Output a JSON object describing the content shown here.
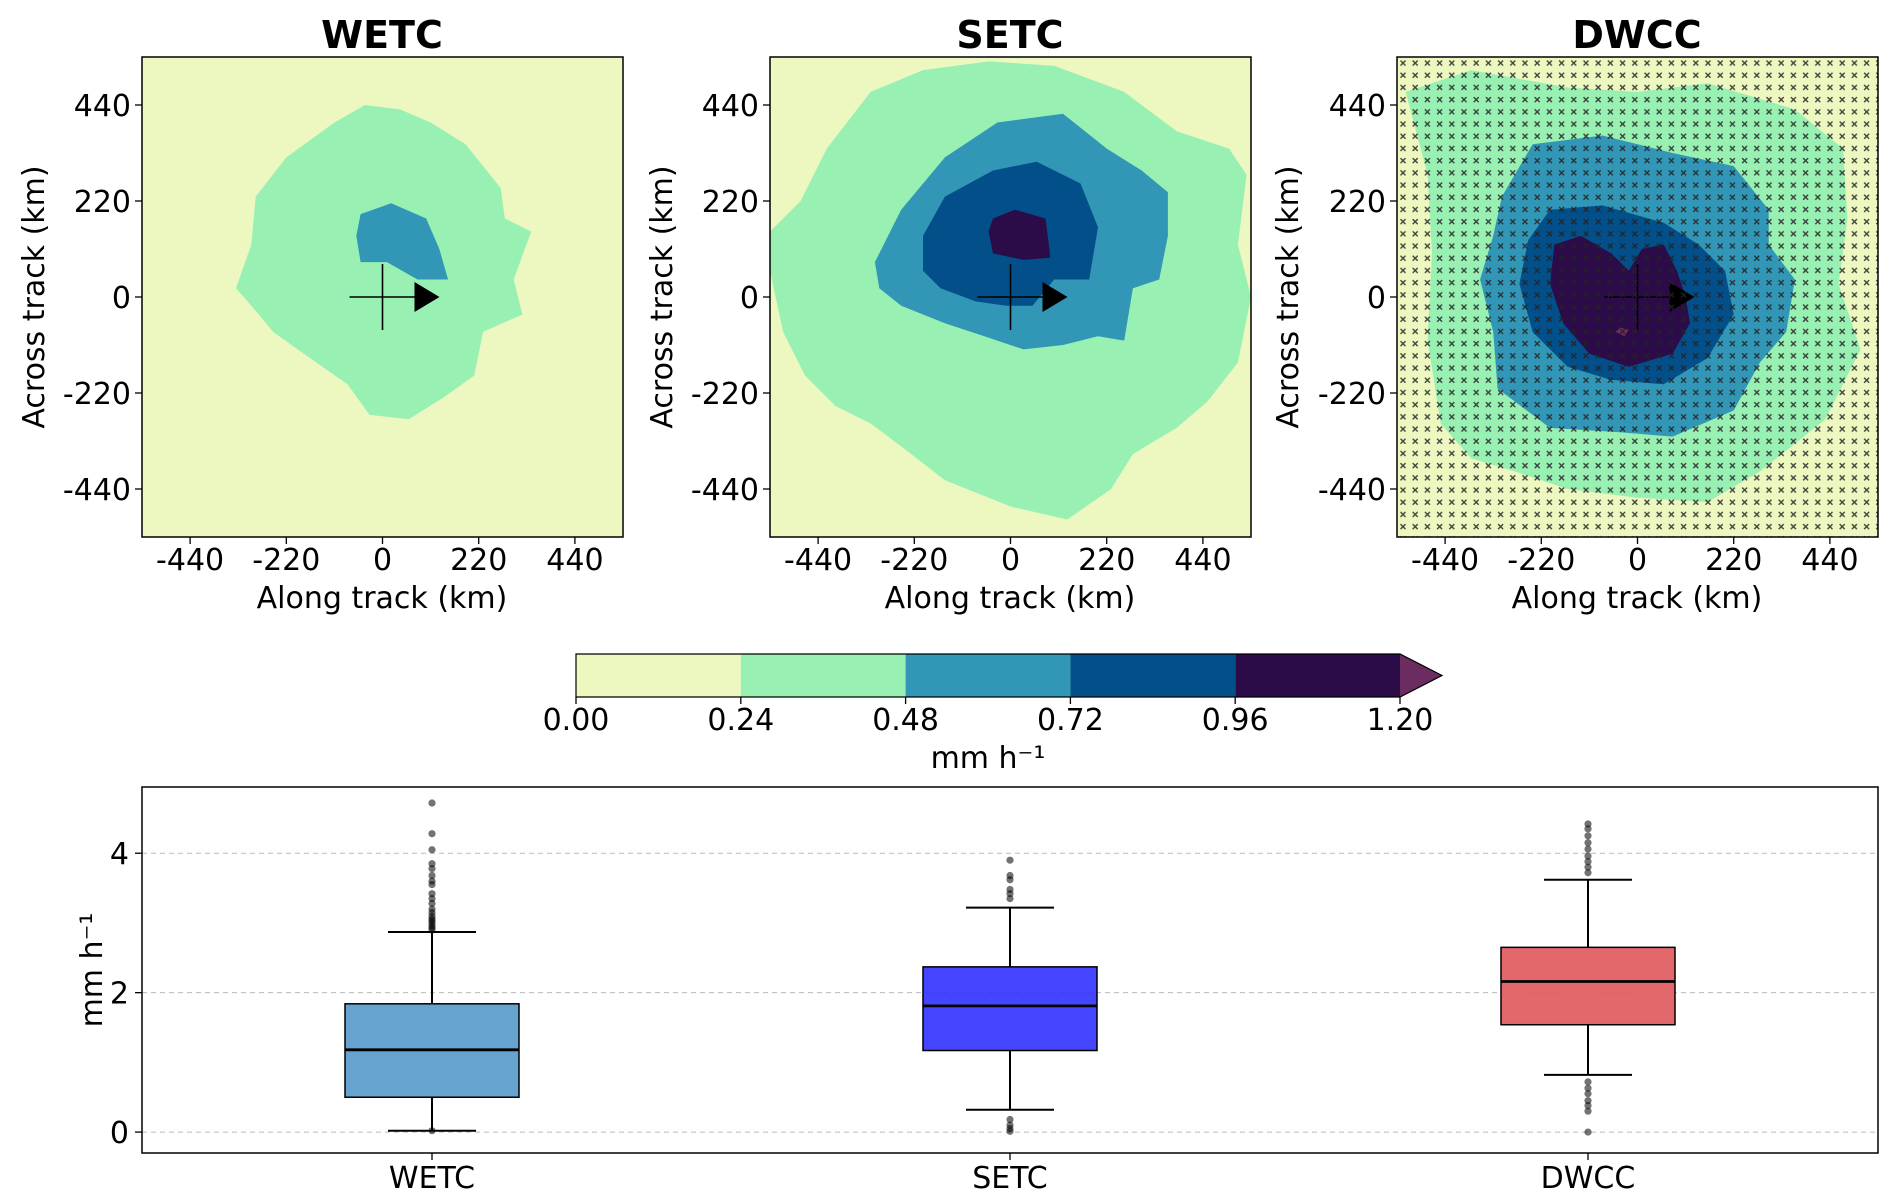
{
  "figure": {
    "panels": [
      {
        "title": "WETC",
        "xlabel": "Along track (km)",
        "ylabel": "Across track (km)"
      },
      {
        "title": "SETC",
        "xlabel": "Along track (km)",
        "ylabel": "Across track (km)"
      },
      {
        "title": "DWCC",
        "xlabel": "Along track (km)",
        "ylabel": "Across track (km)"
      }
    ],
    "map_ticks": [
      "-440",
      "-220",
      "0",
      "220",
      "440"
    ],
    "colorbar": {
      "ticks": [
        "0.00",
        "0.24",
        "0.48",
        "0.72",
        "0.96",
        "1.20"
      ],
      "label": "mm h⁻¹",
      "colors": [
        "#edf8c0",
        "#99f0b3",
        "#3296b6",
        "#034f8a",
        "#2c0b49",
        "#6b2c60"
      ]
    },
    "boxplot": {
      "ylabel": "mm h⁻¹",
      "yticks": [
        "0",
        "2",
        "4"
      ],
      "categories": [
        "WETC",
        "SETC",
        "DWCC"
      ]
    }
  },
  "chart_data": [
    {
      "type": "heatmap",
      "title": "WETC",
      "xlabel": "Along track (km)",
      "ylabel": "Across track (km)",
      "xlim": [
        -550,
        550
      ],
      "ylim": [
        -550,
        550
      ],
      "levels": [
        0.0,
        0.24,
        0.48,
        0.72,
        0.96,
        1.2
      ],
      "contours": [
        {
          "level": 0.24,
          "points": [
            [
              -335,
              20
            ],
            [
              -300,
              120
            ],
            [
              -290,
              230
            ],
            [
              -220,
              320
            ],
            [
              -110,
              400
            ],
            [
              -40,
              440
            ],
            [
              40,
              430
            ],
            [
              110,
              400
            ],
            [
              190,
              350
            ],
            [
              230,
              300
            ],
            [
              270,
              250
            ],
            [
              280,
              180
            ],
            [
              340,
              150
            ],
            [
              300,
              40
            ],
            [
              320,
              -40
            ],
            [
              230,
              -80
            ],
            [
              210,
              -180
            ],
            [
              140,
              -230
            ],
            [
              60,
              -280
            ],
            [
              -30,
              -270
            ],
            [
              -80,
              -200
            ],
            [
              -180,
              -130
            ],
            [
              -250,
              -80
            ],
            [
              -300,
              -20
            ]
          ]
        },
        {
          "level": 0.48,
          "points": [
            [
              -50,
              190
            ],
            [
              20,
              215
            ],
            [
              100,
              180
            ],
            [
              130,
              110
            ],
            [
              150,
              40
            ],
            [
              80,
              40
            ],
            [
              10,
              80
            ],
            [
              -50,
              80
            ],
            [
              -60,
              140
            ]
          ]
        }
      ],
      "storm_marker": {
        "center": [
          0,
          0
        ],
        "direction": "along-track"
      }
    },
    {
      "type": "heatmap",
      "title": "SETC",
      "xlabel": "Along track (km)",
      "ylabel": "Across track (km)",
      "xlim": [
        -550,
        550
      ],
      "ylim": [
        -550,
        550
      ],
      "levels": [
        0.0,
        0.24,
        0.48,
        0.72,
        0.96,
        1.2
      ],
      "contours": [
        {
          "level": 0.24,
          "points": [
            [
              -550,
              150
            ],
            [
              -480,
              220
            ],
            [
              -420,
              340
            ],
            [
              -320,
              470
            ],
            [
              -200,
              520
            ],
            [
              -50,
              540
            ],
            [
              100,
              530
            ],
            [
              260,
              470
            ],
            [
              380,
              380
            ],
            [
              500,
              340
            ],
            [
              540,
              280
            ],
            [
              520,
              120
            ],
            [
              550,
              0
            ],
            [
              520,
              -150
            ],
            [
              450,
              -240
            ],
            [
              380,
              -300
            ],
            [
              280,
              -360
            ],
            [
              230,
              -440
            ],
            [
              130,
              -510
            ],
            [
              0,
              -480
            ],
            [
              -150,
              -420
            ],
            [
              -240,
              -350
            ],
            [
              -320,
              -290
            ],
            [
              -400,
              -250
            ],
            [
              -470,
              -180
            ],
            [
              -520,
              -80
            ],
            [
              -550,
              60
            ]
          ]
        },
        {
          "level": 0.48,
          "points": [
            [
              -310,
              80
            ],
            [
              -250,
              200
            ],
            [
              -150,
              320
            ],
            [
              -30,
              400
            ],
            [
              120,
              420
            ],
            [
              220,
              340
            ],
            [
              300,
              290
            ],
            [
              360,
              240
            ],
            [
              360,
              140
            ],
            [
              340,
              40
            ],
            [
              280,
              20
            ],
            [
              260,
              -100
            ],
            [
              200,
              -90
            ],
            [
              120,
              -110
            ],
            [
              30,
              -120
            ],
            [
              -60,
              -90
            ],
            [
              -150,
              -60
            ],
            [
              -250,
              -20
            ],
            [
              -300,
              20
            ]
          ]
        },
        {
          "level": 0.72,
          "points": [
            [
              -200,
              140
            ],
            [
              -150,
              230
            ],
            [
              -40,
              290
            ],
            [
              60,
              310
            ],
            [
              160,
              260
            ],
            [
              200,
              160
            ],
            [
              180,
              40
            ],
            [
              100,
              40
            ],
            [
              50,
              -20
            ],
            [
              -10,
              -20
            ],
            [
              -80,
              -10
            ],
            [
              -160,
              20
            ],
            [
              -200,
              60
            ]
          ]
        },
        {
          "level": 0.96,
          "points": [
            [
              -40,
              180
            ],
            [
              10,
              200
            ],
            [
              80,
              180
            ],
            [
              90,
              100
            ],
            [
              90,
              90
            ],
            [
              30,
              85
            ],
            [
              -40,
              100
            ],
            [
              -50,
              150
            ]
          ]
        }
      ],
      "storm_marker": {
        "center": [
          0,
          0
        ],
        "direction": "along-track"
      }
    },
    {
      "type": "heatmap",
      "title": "DWCC",
      "xlabel": "Along track (km)",
      "ylabel": "Across track (km)",
      "xlim": [
        -550,
        550
      ],
      "ylim": [
        -550,
        550
      ],
      "levels": [
        0.0,
        0.24,
        0.48,
        0.72,
        0.96,
        1.2
      ],
      "contours": [
        {
          "level": 0.24,
          "points": [
            [
              -530,
              470
            ],
            [
              -380,
              520
            ],
            [
              -160,
              480
            ],
            [
              0,
              470
            ],
            [
              160,
              490
            ],
            [
              360,
              430
            ],
            [
              470,
              340
            ],
            [
              480,
              180
            ],
            [
              460,
              30
            ],
            [
              510,
              -120
            ],
            [
              430,
              -280
            ],
            [
              280,
              -400
            ],
            [
              160,
              -470
            ],
            [
              0,
              -460
            ],
            [
              -160,
              -440
            ],
            [
              -280,
              -400
            ],
            [
              -380,
              -370
            ],
            [
              -450,
              -290
            ],
            [
              -480,
              -100
            ],
            [
              -470,
              100
            ],
            [
              -480,
              280
            ]
          ]
        },
        {
          "level": 0.48,
          "points": [
            [
              -310,
              230
            ],
            [
              -240,
              350
            ],
            [
              -80,
              370
            ],
            [
              80,
              330
            ],
            [
              220,
              300
            ],
            [
              300,
              200
            ],
            [
              300,
              120
            ],
            [
              360,
              40
            ],
            [
              340,
              -80
            ],
            [
              280,
              -150
            ],
            [
              220,
              -260
            ],
            [
              80,
              -320
            ],
            [
              -40,
              -310
            ],
            [
              -200,
              -300
            ],
            [
              -320,
              -210
            ],
            [
              -330,
              -80
            ],
            [
              -360,
              40
            ],
            [
              -330,
              140
            ]
          ]
        },
        {
          "level": 0.72,
          "points": [
            [
              -250,
              130
            ],
            [
              -200,
              200
            ],
            [
              -80,
              210
            ],
            [
              60,
              170
            ],
            [
              140,
              120
            ],
            [
              200,
              60
            ],
            [
              220,
              -40
            ],
            [
              160,
              -140
            ],
            [
              60,
              -200
            ],
            [
              -60,
              -190
            ],
            [
              -160,
              -160
            ],
            [
              -240,
              -80
            ],
            [
              -270,
              30
            ]
          ]
        },
        {
          "level": 0.96,
          "points": [
            [
              -190,
              120
            ],
            [
              -130,
              140
            ],
            [
              -60,
              100
            ],
            [
              -20,
              60
            ],
            [
              10,
              110
            ],
            [
              60,
              120
            ],
            [
              90,
              60
            ],
            [
              110,
              0
            ],
            [
              120,
              -60
            ],
            [
              80,
              -130
            ],
            [
              -20,
              -160
            ],
            [
              -110,
              -130
            ],
            [
              -170,
              -60
            ],
            [
              -200,
              30
            ]
          ]
        },
        {
          "level": 1.2,
          "points": [
            [
              -40,
              -70
            ],
            [
              -20,
              -75
            ],
            [
              -30,
              -90
            ],
            [
              -50,
              -80
            ]
          ]
        }
      ],
      "hatching": "significance",
      "storm_marker": {
        "center": [
          0,
          0
        ],
        "direction": "along-track"
      }
    },
    {
      "type": "box",
      "ylabel": "mm h⁻¹",
      "categories": [
        "WETC",
        "SETC",
        "DWCC"
      ],
      "ylim": [
        -0.3,
        4.95
      ],
      "grid": true,
      "series": [
        {
          "category": "WETC",
          "color": "#5a9bcb",
          "whisker_low": 0.02,
          "q1": 0.5,
          "median": 1.18,
          "q3": 1.84,
          "whisker_high": 2.87,
          "outliers": [
            2.9,
            2.93,
            2.96,
            3.0,
            3.03,
            3.06,
            3.1,
            3.15,
            3.2,
            3.28,
            3.35,
            3.42,
            3.55,
            3.6,
            3.68,
            3.78,
            3.85,
            4.05,
            4.28,
            4.72,
            0.02
          ]
        },
        {
          "category": "SETC",
          "color": "#3535ff",
          "whisker_low": 0.32,
          "q1": 1.17,
          "median": 1.81,
          "q3": 2.37,
          "whisker_high": 3.22,
          "outliers": [
            3.35,
            3.42,
            3.48,
            3.62,
            3.68,
            3.9,
            0.18,
            0.1,
            0.05,
            0.01
          ]
        },
        {
          "category": "DWCC",
          "color": "#e05b5f",
          "whisker_low": 0.82,
          "q1": 1.54,
          "median": 2.16,
          "q3": 2.65,
          "whisker_high": 3.62,
          "outliers": [
            3.72,
            3.8,
            3.88,
            3.96,
            4.06,
            4.15,
            4.25,
            4.35,
            4.42,
            0.72,
            0.63,
            0.55,
            0.45,
            0.38,
            0.3,
            0.0
          ]
        }
      ]
    }
  ]
}
